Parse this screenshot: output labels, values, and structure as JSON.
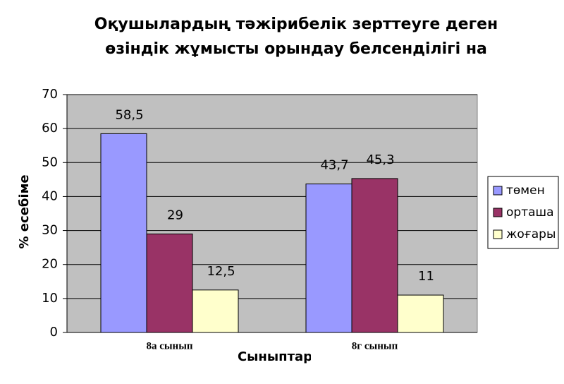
{
  "chart_data": {
    "type": "bar",
    "title": [
      "Оқушылардың тәжірибелік зерттеуге деген",
      "өзіндік жұмысты орындау белсенділігі на"
    ],
    "x_label": "Сыныптар",
    "y_label": "% есебіме",
    "categories": [
      "8а сынып",
      "8г сынып"
    ],
    "series": [
      {
        "name": "төмен",
        "color": "#9999ff",
        "values": [
          58.5,
          43.7
        ],
        "value_labels": [
          "58,5",
          "43,7"
        ]
      },
      {
        "name": "орташа",
        "color": "#993366",
        "values": [
          29,
          45.3
        ],
        "value_labels": [
          "29",
          "45,3"
        ]
      },
      {
        "name": "жоғары",
        "color": "#ffffcc",
        "values": [
          12.5,
          11
        ],
        "value_labels": [
          "12,5",
          "11"
        ]
      }
    ],
    "ylim": [
      0,
      70
    ],
    "yticks": [
      0,
      10,
      20,
      30,
      40,
      50,
      60,
      70
    ],
    "grid": true
  }
}
